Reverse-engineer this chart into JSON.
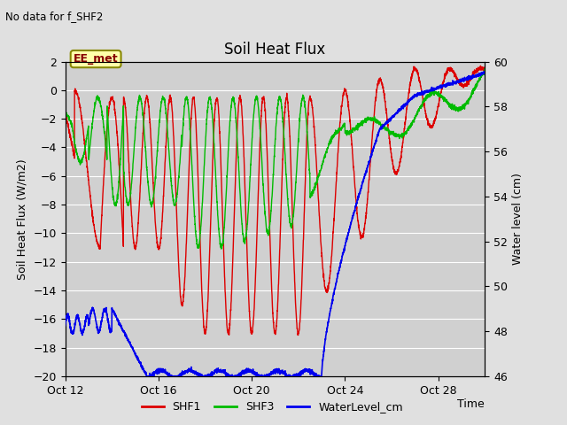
{
  "title": "Soil Heat Flux",
  "subtitle": "No data for f_SHF2",
  "ylabel_left": "Soil Heat Flux (W/m2)",
  "ylabel_right": "Water level (cm)",
  "xlabel": "Time",
  "annotation": "EE_met",
  "ylim_left": [
    -20,
    2
  ],
  "ylim_right": [
    46,
    60
  ],
  "xtick_labels": [
    "Oct 12",
    "Oct 16",
    "Oct 20",
    "Oct 24",
    "Oct 28"
  ],
  "xtick_positions": [
    0,
    4,
    8,
    12,
    16
  ],
  "ytick_left": [
    -20,
    -18,
    -16,
    -14,
    -12,
    -10,
    -8,
    -6,
    -4,
    -2,
    0,
    2
  ],
  "ytick_right": [
    46,
    48,
    50,
    52,
    54,
    56,
    58,
    60
  ],
  "bg_color": "#e0e0e0",
  "plot_bg_color": "#d0d0d0",
  "grid_color": "#ffffff",
  "shf1_color": "#dd0000",
  "shf3_color": "#00bb00",
  "water_color": "#0000ee",
  "legend_labels": [
    "SHF1",
    "SHF3",
    "WaterLevel_cm"
  ],
  "annotation_box_color": "#ffffaa",
  "annotation_box_edge": "#888800",
  "annotation_text_color": "#880000"
}
